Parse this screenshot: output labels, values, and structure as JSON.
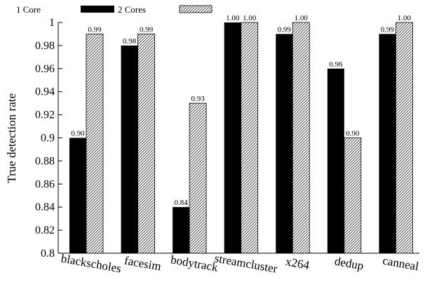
{
  "chart_data": {
    "type": "bar",
    "title": "",
    "xlabel": "",
    "ylabel": "True detection rate",
    "ylim": [
      0.8,
      1.0
    ],
    "yticks": [
      "0.8",
      "0.82",
      "0.84",
      "0.86",
      "0.88",
      "0.9",
      "0.92",
      "0.94",
      "0.96",
      "0.98",
      "1"
    ],
    "categories": [
      "blackscholes",
      "facesim",
      "bodytrack",
      "streamcluster",
      "x264",
      "dedup",
      "canneal"
    ],
    "legend_position": "top-left",
    "grid": false,
    "series": [
      {
        "name": "1 Core",
        "fill": "#000000",
        "values": [
          0.9,
          0.98,
          0.84,
          1.0,
          0.99,
          0.96,
          0.99
        ],
        "labels": [
          "0.90",
          "0.98",
          "0.84",
          "1.00",
          "0.99",
          "0.96",
          "0.99"
        ]
      },
      {
        "name": "2 Cores",
        "fill": "hatched",
        "values": [
          0.99,
          0.99,
          0.93,
          1.0,
          1.0,
          0.9,
          1.0
        ],
        "labels": [
          "0.99",
          "0.99",
          "0.93",
          "1.00",
          "1.00",
          "0.90",
          "1.00"
        ]
      }
    ]
  }
}
